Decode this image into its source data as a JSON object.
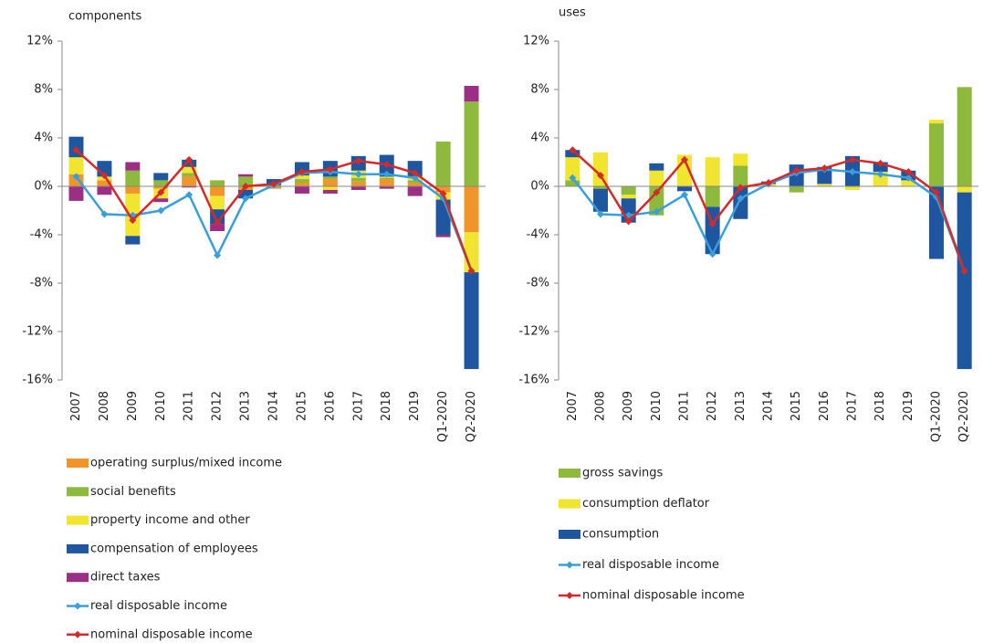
{
  "chart_data": [
    {
      "type": "bar",
      "title": "components",
      "categories": [
        "2007",
        "2008",
        "2009",
        "2010",
        "2011",
        "2012",
        "2013",
        "2014",
        "2015",
        "2016",
        "2017",
        "2018",
        "2019",
        "Q1-2020",
        "Q2-2020"
      ],
      "ylim": [
        -16,
        12
      ],
      "yticks": [
        {
          "value": 12,
          "label": "12%"
        },
        {
          "value": 8,
          "label": "8%"
        },
        {
          "value": 4,
          "label": "4%"
        },
        {
          "value": 0,
          "label": "0%"
        },
        {
          "value": -4,
          "label": "-4%"
        },
        {
          "value": -8,
          "label": "-8%"
        },
        {
          "value": -12,
          "label": "-12%"
        },
        {
          "value": -16,
          "label": "-16%"
        }
      ],
      "series": [
        {
          "name": "operating surplus/mixed income",
          "color": "#f0952a",
          "values": [
            1.0,
            0.5,
            -0.6,
            -0.2,
            0.8,
            -0.8,
            -0.3,
            -0.2,
            0.3,
            0.6,
            0.4,
            0.6,
            0.3,
            -0.5,
            -3.8
          ]
        },
        {
          "name": "social benefits",
          "color": "#8dba3c",
          "values": [
            0,
            0,
            1.3,
            0.5,
            0.3,
            0.5,
            0.8,
            0.1,
            0.3,
            0.2,
            0.3,
            0.1,
            0.2,
            3.7,
            7.0
          ]
        },
        {
          "name": "property income and other",
          "color": "#f2e52f",
          "values": [
            1.4,
            0.3,
            -3.5,
            -0.8,
            0.5,
            -1.1,
            0,
            0,
            0.3,
            -0.3,
            0.6,
            0.1,
            0.3,
            -0.6,
            -3.3
          ]
        },
        {
          "name": "compensation of employees",
          "color": "#1f56a0",
          "values": [
            1.7,
            1.3,
            -0.7,
            0.6,
            0.6,
            -1.2,
            -0.7,
            0.5,
            1.1,
            1.3,
            1.2,
            1.8,
            1.3,
            -2.9,
            -8.0
          ]
        },
        {
          "name": "direct taxes",
          "color": "#9b2f86",
          "values": [
            -1.2,
            -0.7,
            0.7,
            -0.3,
            -0.1,
            -0.6,
            0.2,
            0,
            -0.6,
            -0.3,
            -0.3,
            -0.2,
            -0.8,
            -0.2,
            1.3
          ]
        },
        {
          "name": "real disposable income",
          "color": "#3a9fd9",
          "type": "line",
          "values": [
            0.8,
            -2.3,
            -2.4,
            -2.0,
            -0.7,
            -5.7,
            -1.0,
            0.1,
            1.1,
            1.2,
            1.0,
            1.0,
            0.7,
            -1.0,
            -7.0
          ]
        },
        {
          "name": "nominal disposable income",
          "color": "#d42a2a",
          "type": "line",
          "values": [
            3.0,
            0.9,
            -2.8,
            -0.5,
            2.2,
            -3.0,
            0.0,
            0.2,
            1.2,
            1.4,
            2.1,
            1.8,
            1.1,
            -0.6,
            -7.0
          ]
        }
      ]
    },
    {
      "type": "bar",
      "title": "uses",
      "categories": [
        "2007",
        "2008",
        "2009",
        "2010",
        "2011",
        "2012",
        "2013",
        "2014",
        "2015",
        "2016",
        "2017",
        "2018",
        "2019",
        "Q1-2020",
        "Q2-2020"
      ],
      "ylim": [
        -16,
        12
      ],
      "yticks": [
        {
          "value": 12,
          "label": "12%"
        },
        {
          "value": 8,
          "label": "8%"
        },
        {
          "value": 4,
          "label": "4%"
        },
        {
          "value": 0,
          "label": "0%"
        },
        {
          "value": -4,
          "label": "-4%"
        },
        {
          "value": -8,
          "label": "-8%"
        },
        {
          "value": -12,
          "label": "-12%"
        },
        {
          "value": -16,
          "label": "-16%"
        }
      ],
      "series": [
        {
          "name": "gross savings",
          "color": "#8dba3c",
          "values": [
            0.5,
            -0.2,
            -0.7,
            -2.4,
            0,
            -1.7,
            1.7,
            0,
            -0.5,
            0,
            0,
            0,
            0,
            5.2,
            8.2
          ]
        },
        {
          "name": "consumption deflator",
          "color": "#f2e52f",
          "values": [
            1.9,
            2.8,
            -0.3,
            1.3,
            2.6,
            2.4,
            1.0,
            0.2,
            0,
            0.2,
            -0.3,
            1.2,
            0.5,
            0.3,
            -0.5
          ]
        },
        {
          "name": "consumption",
          "color": "#1f56a0",
          "values": [
            0.6,
            -1.9,
            -2.0,
            0.6,
            -0.4,
            -3.9,
            -2.7,
            0.2,
            1.8,
            1.4,
            2.5,
            0.8,
            0.8,
            -6.0,
            -14.6
          ]
        },
        {
          "name": "real disposable income",
          "color": "#3a9fd9",
          "type": "line",
          "values": [
            0.7,
            -2.3,
            -2.4,
            -2.1,
            -0.7,
            -5.6,
            -1.0,
            0.2,
            1.1,
            1.4,
            1.2,
            1.0,
            0.7,
            -0.9,
            -7.0
          ]
        },
        {
          "name": "nominal disposable income",
          "color": "#d42a2a",
          "type": "line",
          "values": [
            3.0,
            0.9,
            -2.9,
            -0.5,
            2.2,
            -3.1,
            -0.1,
            0.3,
            1.3,
            1.5,
            2.2,
            1.9,
            1.2,
            -0.5,
            -7.0
          ]
        }
      ]
    }
  ]
}
